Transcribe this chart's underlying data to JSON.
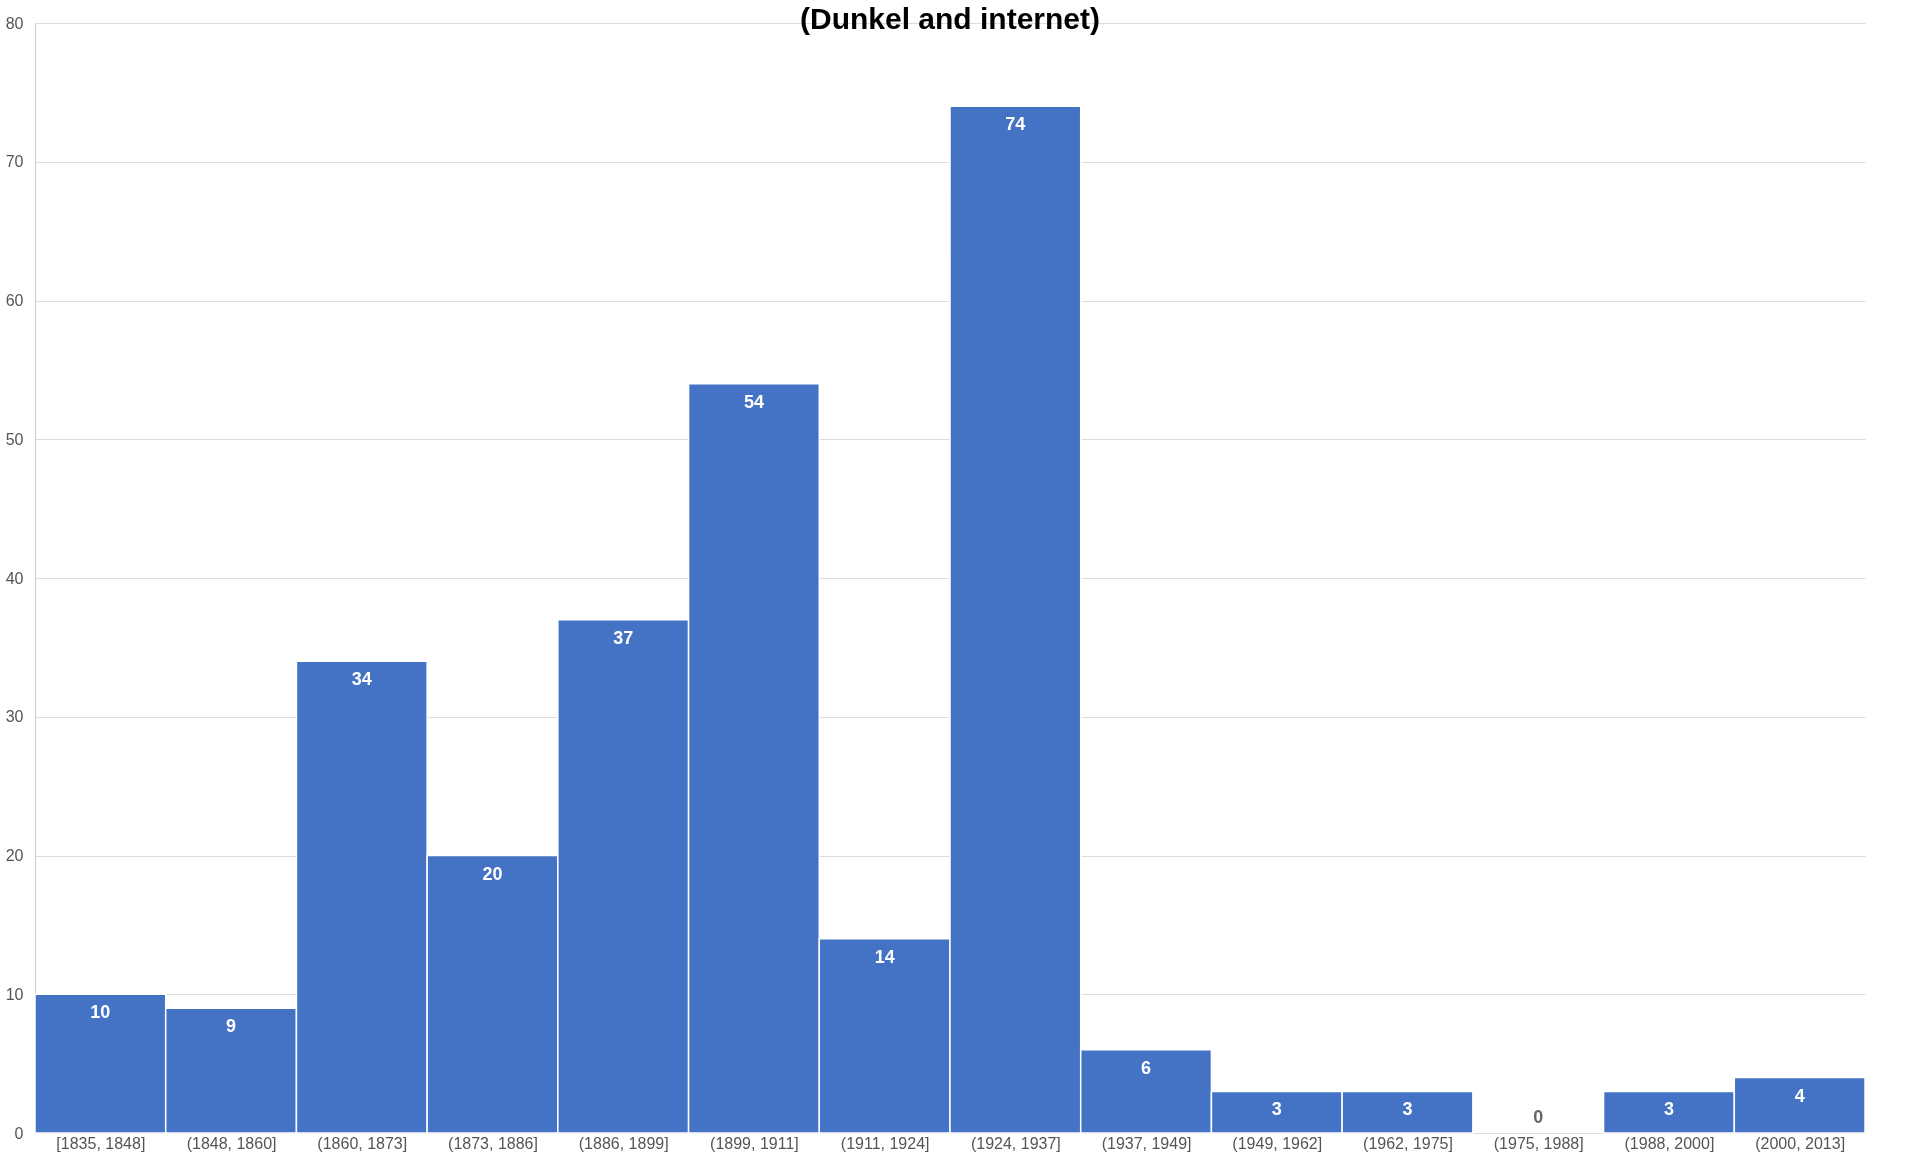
{
  "chart_data": {
    "type": "bar",
    "title": "(Dunkel and internet)",
    "categories": [
      "[1835, 1848]",
      "(1848, 1860]",
      "(1860, 1873]",
      "(1873, 1886]",
      "(1886, 1899]",
      "(1899, 1911]",
      "(1911, 1924]",
      "(1924, 1937]",
      "(1937, 1949]",
      "(1949, 1962]",
      "(1962, 1975]",
      "(1975, 1988]",
      "(1988, 2000]",
      "(2000, 2013]"
    ],
    "values": [
      10,
      9,
      34,
      20,
      37,
      54,
      14,
      74,
      6,
      3,
      3,
      0,
      3,
      4
    ],
    "color": "#4472c4",
    "ylim": [
      0,
      80
    ],
    "yticks": [
      0,
      10,
      20,
      30,
      40,
      50,
      60,
      70,
      80
    ],
    "grid": "y",
    "data_labels": true
  }
}
